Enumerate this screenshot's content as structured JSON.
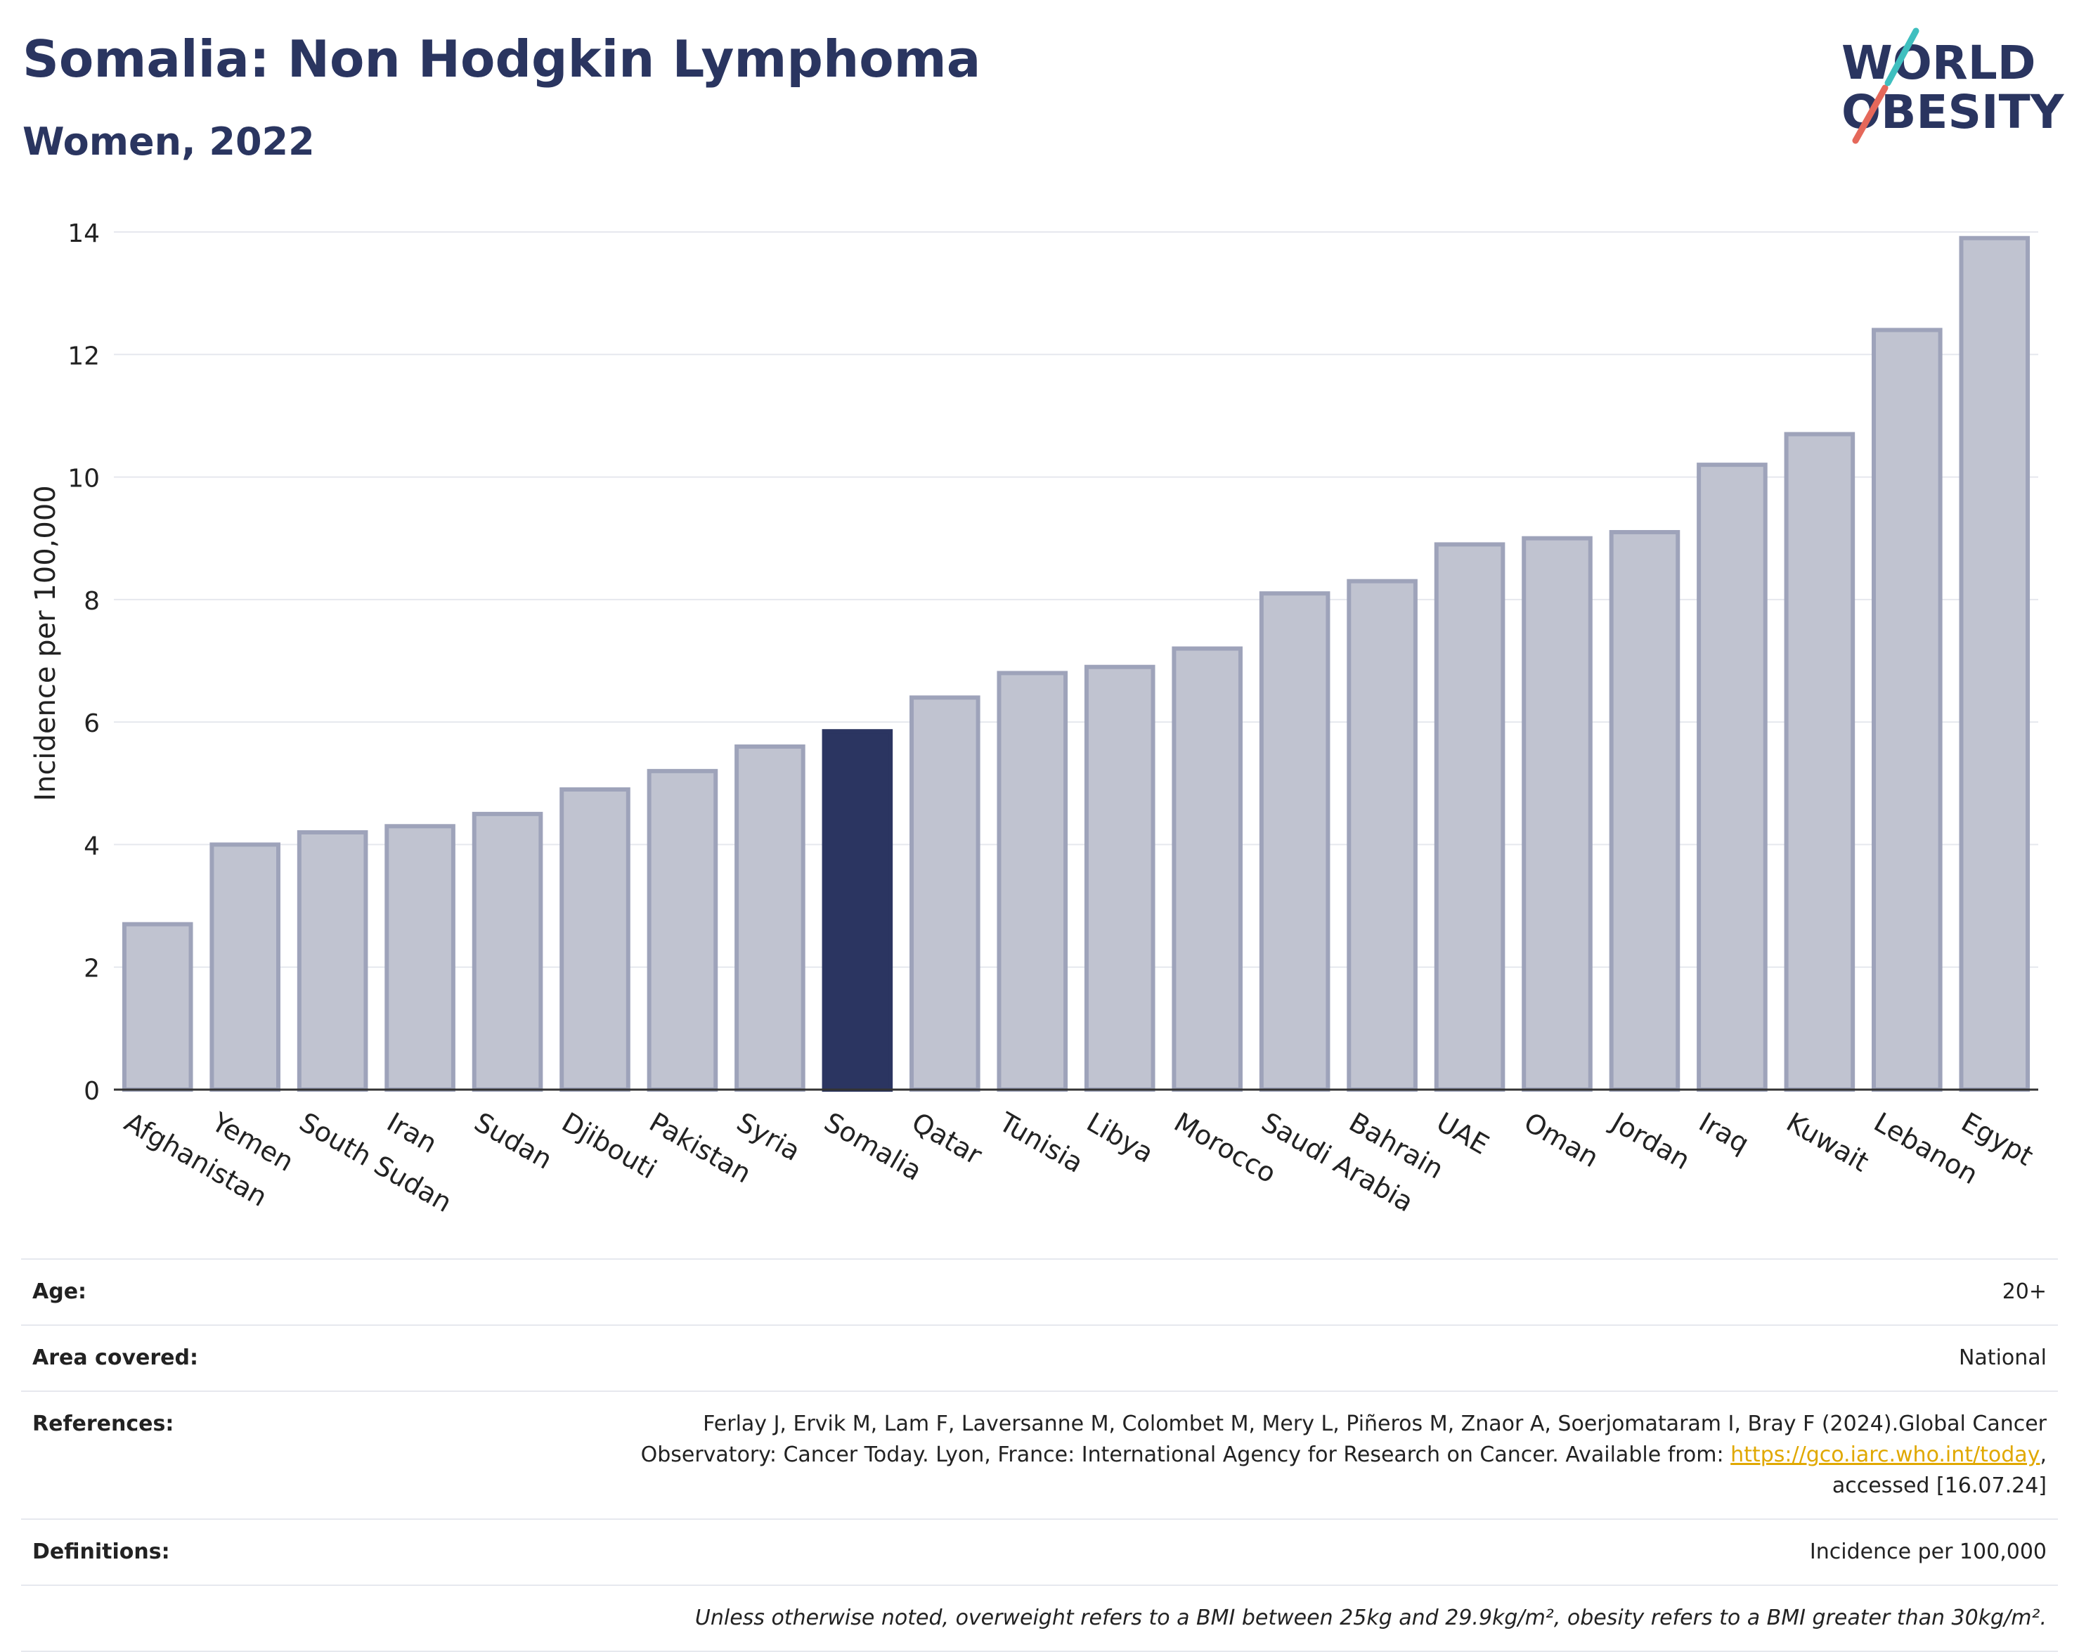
{
  "header": {
    "title": "Somalia: Non Hodgkin Lymphoma",
    "subtitle": "Women, 2022"
  },
  "logo": {
    "line1": "WORLD",
    "line2": "OBESITY",
    "accent_colors": [
      "#3fbfbf",
      "#e5685a"
    ]
  },
  "colors": {
    "highlight": "#2b3561",
    "bar": "#c0c3d0",
    "bar_stroke": "#9ea3ba",
    "grid": "#e6e8ee"
  },
  "chart_data": {
    "type": "bar",
    "ylabel": "Incidence per 100,000",
    "ylim": [
      0,
      14
    ],
    "yticks": [
      0,
      2,
      4,
      6,
      8,
      10,
      12,
      14
    ],
    "grid": true,
    "highlight": "Somalia",
    "categories": [
      "Afghanistan",
      "Yemen",
      "South Sudan",
      "Iran",
      "Sudan",
      "Djibouti",
      "Pakistan",
      "Syria",
      "Somalia",
      "Qatar",
      "Tunisia",
      "Libya",
      "Morocco",
      "Saudi Arabia",
      "Bahrain",
      "UAE",
      "Oman",
      "Jordan",
      "Iraq",
      "Kuwait",
      "Lebanon",
      "Egypt"
    ],
    "values": [
      2.7,
      4.0,
      4.2,
      4.3,
      4.5,
      4.9,
      5.2,
      5.6,
      5.85,
      6.4,
      6.8,
      6.9,
      7.2,
      8.1,
      8.3,
      8.9,
      9.0,
      9.1,
      10.2,
      10.7,
      12.4,
      13.9
    ]
  },
  "info": {
    "age_label": "Age:",
    "age_value": "20+",
    "area_label": "Area covered:",
    "area_value": "National",
    "references_label": "References:",
    "references_text_1": "Ferlay J, Ervik M, Lam F, Laversanne M, Colombet M, Mery L, Piñeros M, Znaor A, Soerjomataram I, Bray F (2024).Global Cancer",
    "references_text_2": "Observatory: Cancer Today. Lyon, France: International Agency for Research on Cancer. Available from: ",
    "references_link": "https://gco.iarc.who.int/today",
    "references_text_3": ",",
    "references_text_4": "accessed [16.07.24]",
    "definitions_label": "Definitions:",
    "definitions_value": "Incidence per 100,000",
    "note": "Unless otherwise noted, overweight refers to a BMI between 25kg and 29.9kg/m², obesity refers to a BMI greater than 30kg/m²."
  }
}
